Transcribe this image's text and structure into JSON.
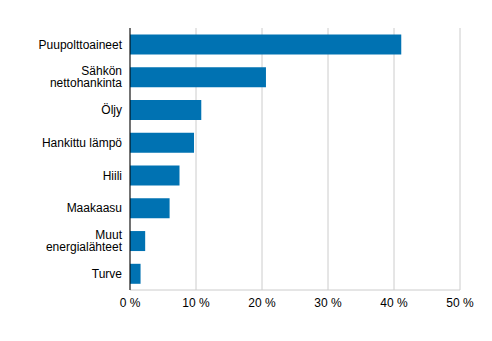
{
  "chart_data": {
    "type": "bar",
    "orientation": "horizontal",
    "categories": [
      "Puupolttoaineet",
      "Sähkön nettohankinta",
      "Öljy",
      "Hankittu lämpö",
      "Hiili",
      "Maakaasu",
      "Muut energialähteet",
      "Turve"
    ],
    "values": [
      41.1,
      20.6,
      10.8,
      9.7,
      7.5,
      6.0,
      2.3,
      1.6
    ],
    "color": "#0072b2",
    "xlim": [
      0,
      50
    ],
    "xticks": [
      {
        "value": 0,
        "label": "0 %"
      },
      {
        "value": 10,
        "label": "10 %"
      },
      {
        "value": 20,
        "label": "20 %"
      },
      {
        "value": 30,
        "label": "30 %"
      },
      {
        "value": 40,
        "label": "40 %"
      },
      {
        "value": 50,
        "label": "50 %"
      }
    ],
    "grid": true
  }
}
